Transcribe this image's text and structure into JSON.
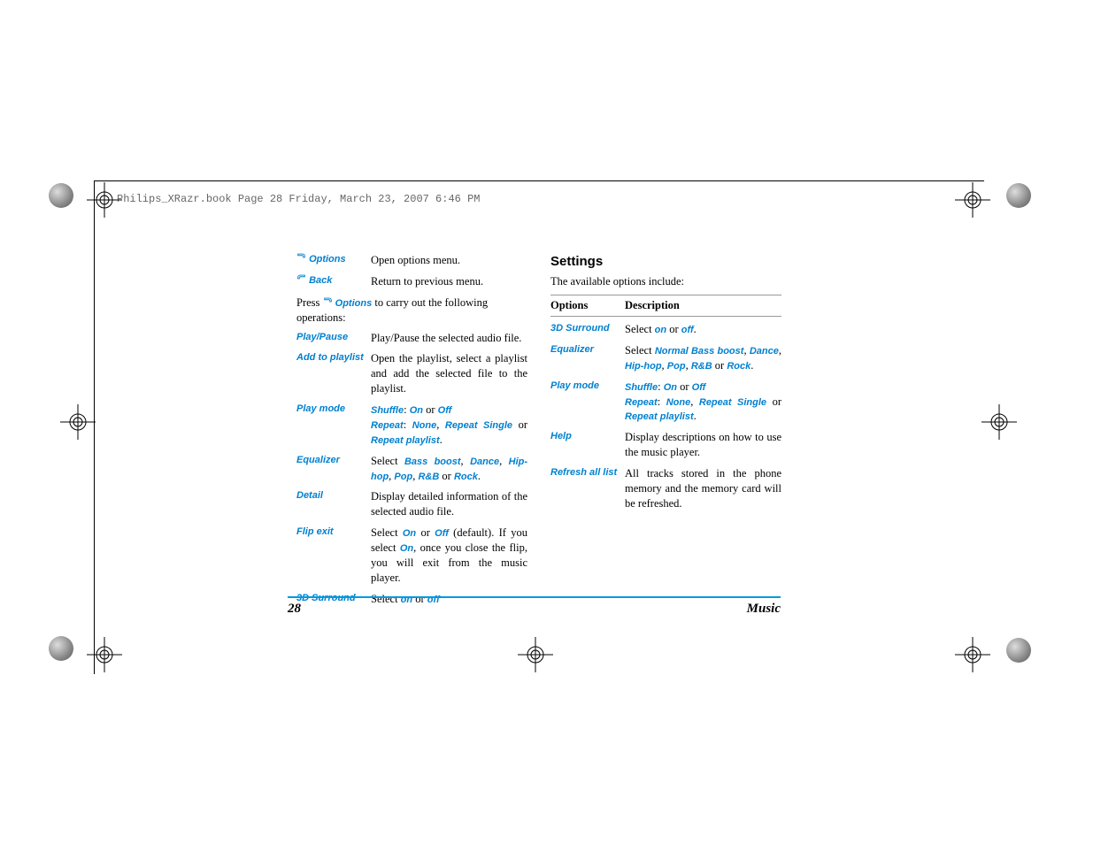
{
  "header_line": "Philips_XRazr.book  Page 28  Friday, March 23, 2007  6:46 PM",
  "colors": {
    "link_blue": "#0080d0",
    "rule_blue": "#0099e0"
  },
  "left_column": {
    "top_rows": [
      {
        "label": "Options",
        "desc_prefix": "",
        "desc": "Open options menu.",
        "icon": "left"
      },
      {
        "label": "Back",
        "desc_prefix": "",
        "desc": "Return to previous menu.",
        "icon": "right"
      }
    ],
    "press_line_prefix": "Press",
    "press_line_label": "Options",
    "press_line_suffix": " to carry out the following operations:",
    "ops": [
      {
        "label": "Play/Pause",
        "parts": [
          {
            "t": "Play/Pause the selected audio file."
          }
        ]
      },
      {
        "label": "Add to playlist",
        "parts": [
          {
            "t": "Open the playlist, select a playlist and add the selected file to the playlist."
          }
        ]
      },
      {
        "label": "Play mode",
        "parts": [
          {
            "b": "Shuffle"
          },
          {
            "t": ": "
          },
          {
            "b": "On"
          },
          {
            "t": " or "
          },
          {
            "b": "Off"
          },
          {
            "br": true
          },
          {
            "b": "Repeat"
          },
          {
            "t": ": "
          },
          {
            "b": "None"
          },
          {
            "t": ", "
          },
          {
            "b": "Repeat Single"
          },
          {
            "t": " or "
          },
          {
            "b": "Repeat playlist"
          },
          {
            "t": "."
          }
        ]
      },
      {
        "label": "Equalizer",
        "parts": [
          {
            "t": "Select "
          },
          {
            "b": "Bass boost"
          },
          {
            "t": ", "
          },
          {
            "b": "Dance"
          },
          {
            "t": ", "
          },
          {
            "b": "Hip-hop"
          },
          {
            "t": ", "
          },
          {
            "b": "Pop"
          },
          {
            "t": ", "
          },
          {
            "b": "R&B"
          },
          {
            "t": " or "
          },
          {
            "b": "Rock"
          },
          {
            "t": "."
          }
        ]
      },
      {
        "label": "Detail",
        "parts": [
          {
            "t": "Display detailed information of the selected audio file."
          }
        ]
      },
      {
        "label": "Flip exit",
        "parts": [
          {
            "t": "Select "
          },
          {
            "b": "On"
          },
          {
            "t": " or "
          },
          {
            "b": "Off"
          },
          {
            "t": " (default). If you select "
          },
          {
            "b": "On"
          },
          {
            "t": ", once you close the flip, you will exit from the music player."
          }
        ]
      },
      {
        "label": "3D Surround",
        "parts": [
          {
            "t": "Select "
          },
          {
            "b": "on"
          },
          {
            "t": " or "
          },
          {
            "b": "off"
          }
        ]
      }
    ]
  },
  "right_column": {
    "title": "Settings",
    "intro": "The available options include:",
    "th_options": "Options",
    "th_description": "Description",
    "rows": [
      {
        "label": "3D Surround",
        "parts": [
          {
            "t": "Select "
          },
          {
            "b": "on"
          },
          {
            "t": " or "
          },
          {
            "b": "off"
          },
          {
            "t": "."
          }
        ]
      },
      {
        "label": "Equalizer",
        "parts": [
          {
            "t": "Select "
          },
          {
            "b": "Normal Bass boost"
          },
          {
            "t": ", "
          },
          {
            "b": "Dance"
          },
          {
            "t": ", "
          },
          {
            "b": "Hip-hop"
          },
          {
            "t": ", "
          },
          {
            "b": "Pop"
          },
          {
            "t": ", "
          },
          {
            "b": "R&B"
          },
          {
            "t": " or "
          },
          {
            "b": "Rock"
          },
          {
            "t": "."
          }
        ]
      },
      {
        "label": "Play mode",
        "parts": [
          {
            "b": "Shuffle"
          },
          {
            "t": ": "
          },
          {
            "b": "On"
          },
          {
            "t": " or "
          },
          {
            "b": "Off"
          },
          {
            "br": true
          },
          {
            "b": "Repeat"
          },
          {
            "t": ": "
          },
          {
            "b": "None"
          },
          {
            "t": ", "
          },
          {
            "b": "Repeat Single"
          },
          {
            "t": " or "
          },
          {
            "b": "Repeat playlist"
          },
          {
            "t": "."
          }
        ]
      },
      {
        "label": "Help",
        "parts": [
          {
            "t": "Display descriptions on how to use the music player."
          }
        ]
      },
      {
        "label": "Refresh all list",
        "parts": [
          {
            "t": "All tracks stored in the phone memory and the memory card will be refreshed."
          }
        ]
      }
    ]
  },
  "footer": {
    "page_number": "28",
    "section": "Music"
  }
}
